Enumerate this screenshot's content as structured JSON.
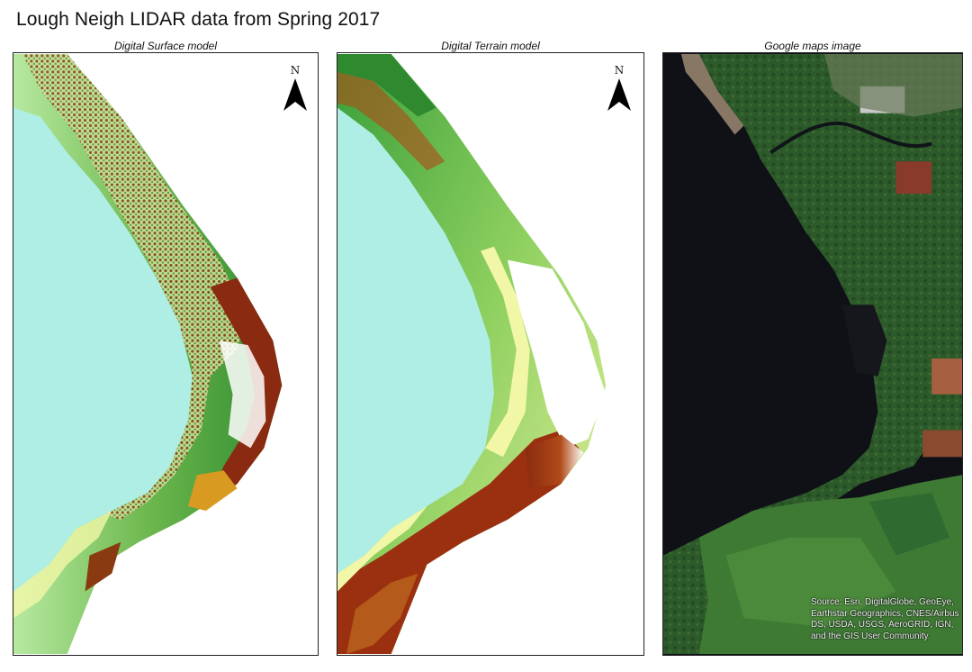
{
  "title": "Lough Neigh LIDAR data from Spring 2017",
  "panels": [
    {
      "title": "Digital Surface model"
    },
    {
      "title": "Digital Terrain model"
    },
    {
      "title": "Google maps image"
    }
  ],
  "north_arrow": {
    "letter": "N"
  },
  "attribution": "Source: Esri, DigitalGlobe, GeoEye, Earthstar Geographics, CNES/Airbus DS, USDA, USGS, AeroGRID, IGN, and the GIS User Community",
  "colors": {
    "water": "#aeeee4",
    "low_land": "#f2f7a8",
    "vegetation": "#3a9a3a",
    "high_land": "#8a2a10",
    "peak": "#ffffff",
    "satellite_water": "#0f1117",
    "satellite_land": "#2d5a2a"
  }
}
